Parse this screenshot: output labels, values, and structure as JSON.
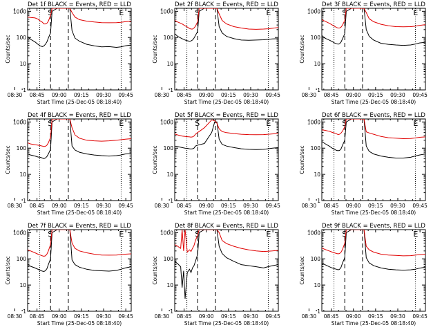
{
  "colors": {
    "events": "#000000",
    "lld": "#e00000",
    "axes": "#000000"
  },
  "figure": {
    "xlabel": "Start Time (25-Dec-05 08:18:40)",
    "ylabel": "Counts/sec",
    "yticks": [
      "1",
      "10",
      "100",
      "1000"
    ],
    "markers": {
      "start": "S",
      "end": "E"
    }
  },
  "chart_data": [
    {
      "type": "line",
      "title": "Det 1f BLACK = Events, RED = LLD",
      "xlabel": "Start Time (25-Dec-05 08:18:40)",
      "ylabel": "Counts/sec",
      "yscale": "log",
      "ylim": [
        1,
        1300
      ],
      "xticks": [
        "08:30",
        "08:45",
        "09:00",
        "09:15",
        "09:30",
        "09:45"
      ],
      "vlines": {
        "dotted": [
          28.2,
          83.2
        ],
        "dashed": [
          35.5,
          47.5
        ]
      },
      "markers": {
        "S": 35.5,
        "E": 83.2
      },
      "x": [
        20,
        22,
        25,
        27,
        28.5,
        30,
        31,
        32,
        33,
        34,
        35.5,
        36.5,
        40,
        45,
        47,
        48.5,
        50,
        52,
        55,
        60,
        65,
        70,
        75,
        80,
        83,
        86,
        90
      ],
      "series": [
        {
          "name": "BLACK = Events",
          "color": "#000000",
          "values": [
            110,
            85,
            68,
            55,
            48,
            45,
            48,
            55,
            68,
            95,
            150,
            1000,
            1300,
            1300,
            1300,
            1300,
            180,
            95,
            72,
            55,
            48,
            44,
            45,
            42,
            44,
            48,
            52
          ]
        },
        {
          "name": "RED = LLD",
          "color": "#e00000",
          "values": [
            600,
            580,
            560,
            500,
            430,
            380,
            330,
            330,
            350,
            420,
            700,
            1300,
            1300,
            1300,
            1300,
            1300,
            900,
            600,
            480,
            420,
            390,
            370,
            365,
            370,
            380,
            400,
            420
          ]
        }
      ]
    },
    {
      "type": "line",
      "title": "Det 2f BLACK = Events, RED = LLD",
      "xlabel": "Start Time (25-Dec-05 08:18:40)",
      "ylabel": "Counts/sec",
      "yscale": "log",
      "ylim": [
        1,
        1300
      ],
      "xticks": [
        "08:30",
        "08:45",
        "09:00",
        "09:15",
        "09:30",
        "09:45"
      ],
      "vlines": {
        "dotted": [
          28.2,
          83.2
        ],
        "dashed": [
          35.5,
          47.5
        ]
      },
      "markers": {
        "S": 35.5,
        "E": 83.2
      },
      "x": [
        20,
        22,
        25,
        27,
        28.5,
        30,
        31,
        32,
        33,
        34,
        35.5,
        36.5,
        40,
        45,
        47,
        48.5,
        50,
        52,
        55,
        60,
        65,
        70,
        75,
        80,
        83,
        86,
        90
      ],
      "series": [
        {
          "name": "BLACK = Events",
          "color": "#000000",
          "values": [
            140,
            110,
            90,
            80,
            75,
            72,
            74,
            80,
            95,
            120,
            170,
            1000,
            1300,
            1300,
            1300,
            1300,
            260,
            150,
            110,
            90,
            80,
            78,
            80,
            82,
            85,
            88,
            90
          ]
        },
        {
          "name": "RED = LLD",
          "color": "#e00000",
          "values": [
            450,
            390,
            330,
            280,
            250,
            220,
            210,
            210,
            230,
            270,
            400,
            1300,
            1300,
            1300,
            1300,
            1300,
            800,
            450,
            330,
            260,
            230,
            210,
            205,
            210,
            215,
            225,
            240
          ]
        }
      ]
    },
    {
      "type": "line",
      "title": "Det 3f BLACK = Events, RED = LLD",
      "xlabel": "Start Time (25-Dec-05 08:18:40)",
      "ylabel": "Counts/sec",
      "yscale": "log",
      "ylim": [
        1,
        1300
      ],
      "xticks": [
        "08:30",
        "08:45",
        "09:00",
        "09:15",
        "09:30",
        "09:45"
      ],
      "vlines": {
        "dotted": [
          28.2,
          83.2
        ],
        "dashed": [
          35.5,
          47.5
        ]
      },
      "markers": {
        "S": 35.5,
        "E": 83.2
      },
      "x": [
        20,
        22,
        25,
        27,
        28.5,
        30,
        31,
        32,
        33,
        34,
        35.5,
        36.5,
        40,
        45,
        47,
        48.5,
        50,
        52,
        55,
        60,
        65,
        70,
        75,
        80,
        83,
        86,
        90
      ],
      "series": [
        {
          "name": "BLACK = Events",
          "color": "#000000",
          "values": [
            120,
            95,
            80,
            70,
            62,
            58,
            56,
            58,
            68,
            90,
            140,
            1000,
            1300,
            1300,
            1300,
            1300,
            200,
            110,
            80,
            60,
            55,
            52,
            50,
            52,
            56,
            62,
            66
          ]
        },
        {
          "name": "RED = LLD",
          "color": "#e00000",
          "values": [
            480,
            420,
            350,
            300,
            270,
            240,
            230,
            230,
            250,
            300,
            450,
            1300,
            1300,
            1300,
            1300,
            1300,
            900,
            520,
            400,
            320,
            280,
            260,
            255,
            260,
            270,
            290,
            310
          ]
        }
      ]
    },
    {
      "type": "line",
      "title": "Det 4f BLACK = Events, RED = LLD",
      "xlabel": "Start Time (25-Dec-05 08:18:40)",
      "ylabel": "Counts/sec",
      "yscale": "log",
      "ylim": [
        1,
        1300
      ],
      "xticks": [
        "08:30",
        "08:45",
        "09:00",
        "09:15",
        "09:30",
        "09:45"
      ],
      "vlines": {
        "dotted": [
          28.2,
          83.2
        ],
        "dashed": [
          35.5,
          47.5
        ]
      },
      "markers": {
        "S": 35.5,
        "E": 83.2
      },
      "x": [
        20,
        22,
        25,
        27,
        28.5,
        30,
        31,
        32,
        33,
        34,
        35.5,
        36.5,
        40,
        45,
        47,
        48.5,
        50,
        52,
        55,
        60,
        65,
        70,
        75,
        80,
        83,
        86,
        90
      ],
      "series": [
        {
          "name": "BLACK = Events",
          "color": "#000000",
          "values": [
            60,
            55,
            50,
            46,
            45,
            42,
            40,
            42,
            48,
            60,
            90,
            1000,
            1300,
            1300,
            1300,
            1300,
            120,
            85,
            70,
            60,
            55,
            52,
            50,
            52,
            55,
            60,
            62
          ]
        },
        {
          "name": "RED = LLD",
          "color": "#e00000",
          "values": [
            160,
            145,
            135,
            130,
            125,
            120,
            115,
            118,
            130,
            160,
            260,
            1300,
            1300,
            1300,
            1300,
            1300,
            600,
            320,
            240,
            200,
            190,
            185,
            190,
            200,
            210,
            220,
            230
          ]
        }
      ]
    },
    {
      "type": "line",
      "title": "Det 5f BLACK = Events, RED = LLD",
      "xlabel": "Start Time (25-Dec-05 08:18:40)",
      "ylabel": "Counts/sec",
      "yscale": "log",
      "ylim": [
        1,
        1300
      ],
      "xticks": [
        "08:30",
        "08:45",
        "09:00",
        "09:15",
        "09:30",
        "09:45"
      ],
      "vlines": {
        "dotted": [
          28.2,
          83.2
        ],
        "dashed": [
          35.5,
          47.5
        ]
      },
      "markers": {
        "S": 35.5,
        "E": 83.2
      },
      "x": [
        20,
        22,
        25,
        27,
        28.5,
        30,
        31,
        32,
        33,
        34,
        35.5,
        36.5,
        40,
        45,
        47,
        48.5,
        50,
        52,
        55,
        60,
        65,
        70,
        75,
        80,
        83,
        86,
        90
      ],
      "series": [
        {
          "name": "BLACK = Events",
          "color": "#000000",
          "values": [
            120,
            115,
            105,
            100,
            98,
            95,
            93,
            95,
            100,
            120,
            130,
            135,
            150,
            400,
            1000,
            1000,
            220,
            140,
            120,
            105,
            95,
            90,
            88,
            90,
            95,
            100,
            105
          ]
        },
        {
          "name": "RED = LLD",
          "color": "#e00000",
          "values": [
            350,
            320,
            290,
            280,
            275,
            270,
            265,
            270,
            290,
            340,
            400,
            430,
            600,
            1200,
            1100,
            900,
            550,
            430,
            390,
            360,
            340,
            330,
            325,
            330,
            340,
            350,
            360
          ]
        }
      ]
    },
    {
      "type": "line",
      "title": "Det 6f BLACK = Events, RED = LLD",
      "xlabel": "Start Time (25-Dec-05 08:18:40)",
      "ylabel": "Counts/sec",
      "yscale": "log",
      "ylim": [
        1,
        1300
      ],
      "xticks": [
        "08:30",
        "08:45",
        "09:00",
        "09:15",
        "09:30",
        "09:45"
      ],
      "vlines": {
        "dotted": [
          28.2,
          83.2
        ],
        "dashed": [
          35.5,
          47.5
        ]
      },
      "markers": {
        "S": 35.5,
        "E": 83.2
      },
      "x": [
        20,
        22,
        25,
        27,
        28.5,
        30,
        31,
        32,
        33,
        34,
        35.5,
        36.5,
        40,
        45,
        47,
        48.5,
        50,
        52,
        55,
        60,
        65,
        70,
        75,
        80,
        83,
        86,
        90
      ],
      "series": [
        {
          "name": "BLACK = Events",
          "color": "#000000",
          "values": [
            180,
            150,
            120,
            100,
            90,
            82,
            80,
            82,
            95,
            130,
            200,
            1000,
            1300,
            1300,
            1300,
            1300,
            120,
            75,
            60,
            50,
            45,
            42,
            42,
            45,
            50,
            55,
            60
          ]
        },
        {
          "name": "RED = LLD",
          "color": "#e00000",
          "values": [
            500,
            480,
            440,
            400,
            380,
            350,
            330,
            340,
            380,
            450,
            650,
            1300,
            1300,
            1300,
            1300,
            1300,
            420,
            380,
            340,
            280,
            250,
            240,
            230,
            235,
            245,
            260,
            270
          ]
        }
      ]
    },
    {
      "type": "line",
      "title": "Det 7f BLACK = Events, RED = LLD",
      "xlabel": "Start Time (25-Dec-05 08:18:40)",
      "ylabel": "Counts/sec",
      "yscale": "log",
      "ylim": [
        1,
        1300
      ],
      "xticks": [
        "08:30",
        "08:45",
        "09:00",
        "09:15",
        "09:30",
        "09:45"
      ],
      "vlines": {
        "dotted": [
          28.2,
          83.2
        ],
        "dashed": [
          35.5,
          47.5
        ]
      },
      "markers": {
        "S": 35.5,
        "E": 83.2
      },
      "x": [
        20,
        22,
        25,
        27,
        28.5,
        30,
        31,
        32,
        33,
        34,
        35.5,
        36.5,
        40,
        45,
        47,
        48.5,
        50,
        52,
        55,
        60,
        65,
        70,
        75,
        80,
        83,
        86,
        90
      ],
      "series": [
        {
          "name": "BLACK = Events",
          "color": "#000000",
          "values": [
            60,
            52,
            45,
            40,
            36,
            34,
            33,
            35,
            42,
            60,
            100,
            1000,
            1300,
            1300,
            1300,
            1300,
            90,
            60,
            48,
            40,
            36,
            35,
            34,
            36,
            40,
            45,
            50
          ]
        },
        {
          "name": "RED = LLD",
          "color": "#e00000",
          "values": [
            220,
            200,
            170,
            150,
            140,
            130,
            125,
            130,
            150,
            200,
            350,
            1300,
            1300,
            1300,
            1300,
            1300,
            400,
            250,
            200,
            170,
            150,
            140,
            138,
            140,
            145,
            150,
            155
          ]
        }
      ]
    },
    {
      "type": "line",
      "title": "Det 8f BLACK = Events, RED = LLD",
      "xlabel": "Start Time (25-Dec-05 08:18:40)",
      "ylabel": "Counts/sec",
      "yscale": "log",
      "ylim": [
        1,
        1300
      ],
      "xticks": [
        "08:30",
        "08:45",
        "09:00",
        "09:15",
        "09:30",
        "09:45"
      ],
      "vlines": {
        "dotted": [
          28.2,
          83.2
        ],
        "dashed": [
          35.5,
          47.5
        ]
      },
      "markers": {
        "S": 35.5,
        "E": 83.2
      },
      "x": [
        20,
        22,
        24,
        25,
        26,
        27,
        28.5,
        30,
        31,
        32,
        33,
        34,
        35.5,
        36.5,
        40,
        45,
        47,
        48.5,
        50,
        52,
        55,
        60,
        65,
        70,
        75,
        80,
        83,
        86,
        90
      ],
      "series": [
        {
          "name": "BLACK = Events",
          "color": "#000000",
          "values": [
            80,
            65,
            50,
            8,
            35,
            3,
            30,
            40,
            30,
            45,
            55,
            80,
            150,
            1000,
            1300,
            1300,
            1300,
            1300,
            300,
            160,
            110,
            80,
            60,
            55,
            50,
            45,
            50,
            55,
            60
          ]
        },
        {
          "name": "RED = LLD",
          "color": "#e00000",
          "values": [
            350,
            300,
            250,
            1300,
            200,
            1300,
            180,
            220,
            190,
            250,
            320,
            500,
            800,
            1300,
            1300,
            1300,
            1300,
            1300,
            1000,
            500,
            380,
            300,
            250,
            220,
            200,
            190,
            195,
            200,
            210
          ]
        }
      ]
    },
    {
      "type": "line",
      "title": "Det 9f BLACK = Events, RED = LLD",
      "xlabel": "Start Time (25-Dec-05 08:18:40)",
      "ylabel": "Counts/sec",
      "yscale": "log",
      "ylim": [
        1,
        1300
      ],
      "xticks": [
        "08:30",
        "08:45",
        "09:00",
        "09:15",
        "09:30",
        "09:45"
      ],
      "vlines": {
        "dotted": [
          28.2,
          83.2
        ],
        "dashed": [
          35.5,
          47.5
        ]
      },
      "markers": {
        "S": 35.5,
        "E": 83.2
      },
      "x": [
        20,
        22,
        25,
        27,
        28.5,
        30,
        31,
        32,
        33,
        34,
        35.5,
        36.5,
        40,
        45,
        47,
        48.5,
        50,
        52,
        55,
        60,
        65,
        70,
        75,
        80,
        83,
        86,
        90
      ],
      "series": [
        {
          "name": "BLACK = Events",
          "color": "#000000",
          "values": [
            70,
            60,
            50,
            45,
            42,
            40,
            38,
            40,
            48,
            70,
            110,
            1000,
            1300,
            1300,
            1300,
            1300,
            110,
            70,
            55,
            45,
            40,
            38,
            37,
            38,
            40,
            44,
            48
          ]
        },
        {
          "name": "RED = LLD",
          "color": "#e00000",
          "values": [
            260,
            230,
            200,
            180,
            170,
            160,
            155,
            160,
            180,
            230,
            400,
            1300,
            1300,
            1300,
            1300,
            1300,
            300,
            220,
            180,
            150,
            140,
            135,
            130,
            132,
            138,
            145,
            150
          ]
        }
      ]
    }
  ]
}
